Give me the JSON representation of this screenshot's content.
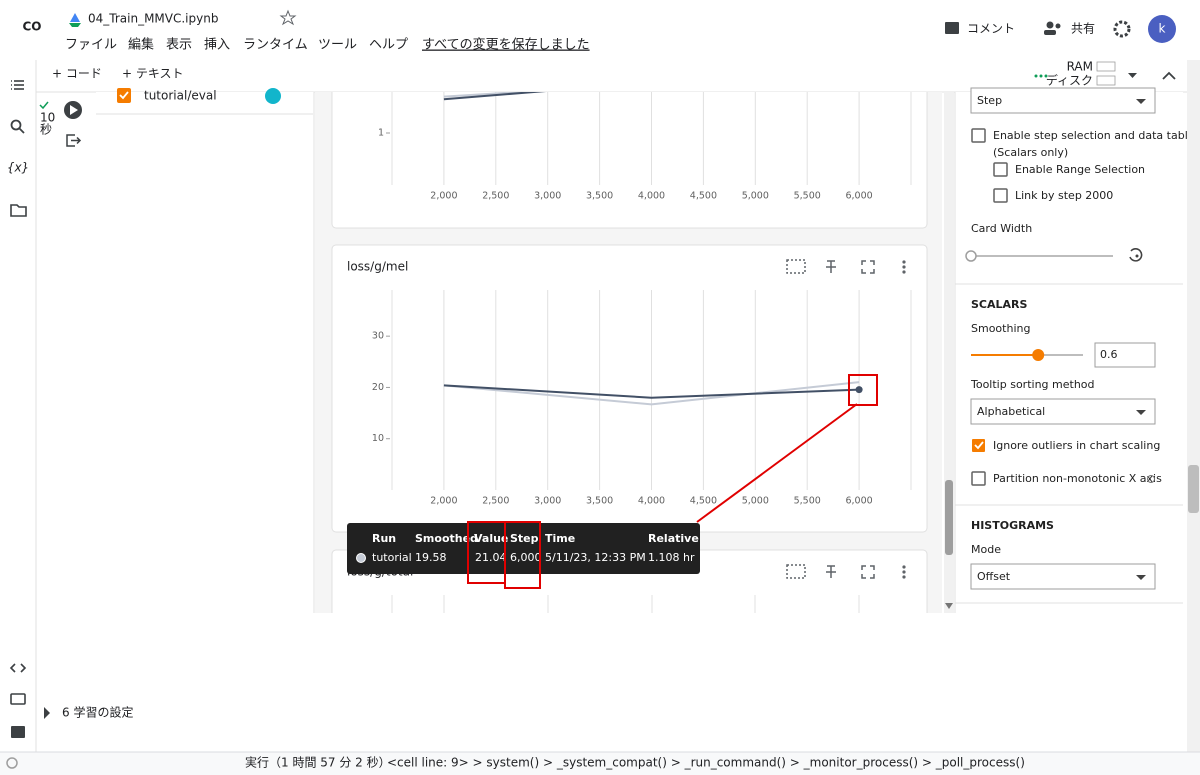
{
  "header": {
    "logo": "CO",
    "filename": "04_Train_MMVC.ipynb",
    "menu": [
      "ファイル",
      "編集",
      "表示",
      "挿入",
      "ランタイム",
      "ツール",
      "ヘルプ"
    ],
    "saved_status": "すべての変更を保存しました",
    "comment": "コメント",
    "share": "共有",
    "avatar": "k"
  },
  "toolbar": {
    "add_code": "+ コード",
    "add_text": "+ テキスト",
    "ram": "RAM",
    "disk": "ディスク"
  },
  "sidebar": {
    "variables": "{x}"
  },
  "cell": {
    "elapsed": "10",
    "elapsed_unit": "秒"
  },
  "runs": {
    "run": "tutorial/eval"
  },
  "chart_data": [
    {
      "type": "line",
      "x": [
        2000,
        3000
      ],
      "series": [
        {
          "color": "#c5cbd6",
          "values": [
            1.7,
            1.82
          ]
        },
        {
          "color": "#425066",
          "values": [
            1.65,
            1.81
          ]
        }
      ],
      "xlim": [
        1500,
        6500
      ],
      "ylim": [
        0,
        2
      ],
      "yticks": [
        1
      ],
      "xticks": [
        {
          "value": 2000,
          "label": "2,000"
        },
        {
          "value": 2500,
          "label": "2,500"
        },
        {
          "value": 3000,
          "label": "3,000"
        },
        {
          "value": 3500,
          "label": "3,500"
        },
        {
          "value": 4000,
          "label": "4,000"
        },
        {
          "value": 4500,
          "label": "4,500"
        },
        {
          "value": 5000,
          "label": "5,000"
        },
        {
          "value": 5500,
          "label": "5,500"
        },
        {
          "value": 6000,
          "label": "6,000"
        }
      ]
    },
    {
      "type": "line",
      "title": "loss/g/mel",
      "x": [
        2000,
        4000,
        6000
      ],
      "series": [
        {
          "color": "#c5cbd6",
          "values": [
            20.4,
            16.7,
            21.04
          ]
        },
        {
          "color": "#425066",
          "values": [
            20.4,
            18.0,
            19.58
          ]
        }
      ],
      "xlim": [
        1500,
        6500
      ],
      "ylim": [
        0,
        39
      ],
      "yticks": [
        10,
        20,
        30
      ],
      "xticks": [
        {
          "value": 2000,
          "label": "2,000"
        },
        {
          "value": 2500,
          "label": "2,500"
        },
        {
          "value": 3000,
          "label": "3,000"
        },
        {
          "value": 3500,
          "label": "3,500"
        },
        {
          "value": 4000,
          "label": "4,000"
        },
        {
          "value": 4500,
          "label": "4,500"
        },
        {
          "value": 5000,
          "label": "5,000"
        },
        {
          "value": 5500,
          "label": "5,500"
        },
        {
          "value": 6000,
          "label": "6,000"
        }
      ]
    },
    {
      "type": "line",
      "title": "loss/g/total"
    }
  ],
  "tooltip": {
    "headers": [
      "Run",
      "Smoothed",
      "Value",
      "Step",
      "Time",
      "Relative"
    ],
    "run": "tutorial",
    "step": "6,000",
    "time": "5/11/23, 12:33 PM",
    "relative": "1.108 hr"
  },
  "settings": {
    "x_axis": "Step",
    "step_selection": "Enable step selection and data table",
    "scalars_only": "(Scalars only)",
    "range_selection": "Enable Range Selection",
    "link_by_step": "Link by step 2000",
    "card_width": "Card Width",
    "scalars_heading": "SCALARS",
    "smoothing_label": "Smoothing",
    "smoothing": 0.6,
    "tooltip_sorting_label": "Tooltip sorting method",
    "tooltip_sorting": "Alphabetical",
    "ignore_outliers": "Ignore outliers in chart scaling",
    "partition": "Partition non-monotonic X axis",
    "histograms_heading": "HISTOGRAMS",
    "mode_label": "Mode",
    "mode": "Offset"
  },
  "section": {
    "title": "6 学習の設定"
  },
  "status_bar": {
    "elapsed": "実行（1 時間 57 分 2 秒）",
    "trace": "<cell line: 9> > system() > _system_compat() > _run_command() > _monitor_process() > _poll_process()"
  }
}
